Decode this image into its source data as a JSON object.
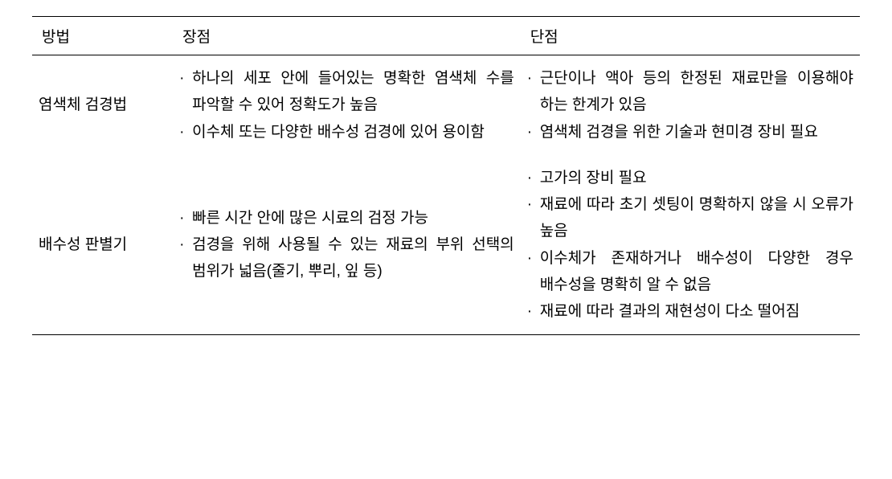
{
  "table": {
    "columns": [
      {
        "key": "method",
        "label": "방법"
      },
      {
        "key": "pros",
        "label": "장점"
      },
      {
        "key": "cons",
        "label": "단점"
      }
    ],
    "rows": [
      {
        "method": "염색체 검경법",
        "pros": [
          "하나의 세포 안에 들어있는 명확한 염색체 수를 파악할 수 있어 정확도가 높음",
          "이수체 또는 다양한 배수성 검경에 있어 용이함"
        ],
        "cons": [
          "근단이나 액아 등의 한정된 재료만을 이용해야 하는 한계가 있음",
          "염색체 검경을 위한 기술과 현미경 장비 필요"
        ]
      },
      {
        "method": "배수성 판별기",
        "pros": [
          "빠른 시간 안에 많은 시료의 검정 가능",
          "검경을 위해 사용될 수 있는 재료의 부위 선택의 범위가 넓음(줄기, 뿌리, 잎 등)"
        ],
        "cons": [
          "고가의 장비 필요",
          "재료에 따라 초기 셋팅이 명확하지 않을 시 오류가 높음",
          "이수체가 존재하거나 배수성이 다양한 경우 배수성을 명확히 알 수 없음",
          "재료에 따라 결과의 재현성이 다소 떨어짐"
        ]
      }
    ],
    "style": {
      "font_size_pt": 14,
      "line_height": 1.75,
      "text_color": "#000000",
      "background_color": "#ffffff",
      "border_color": "#000000",
      "column_widths_pct": [
        17,
        42,
        41
      ]
    }
  }
}
